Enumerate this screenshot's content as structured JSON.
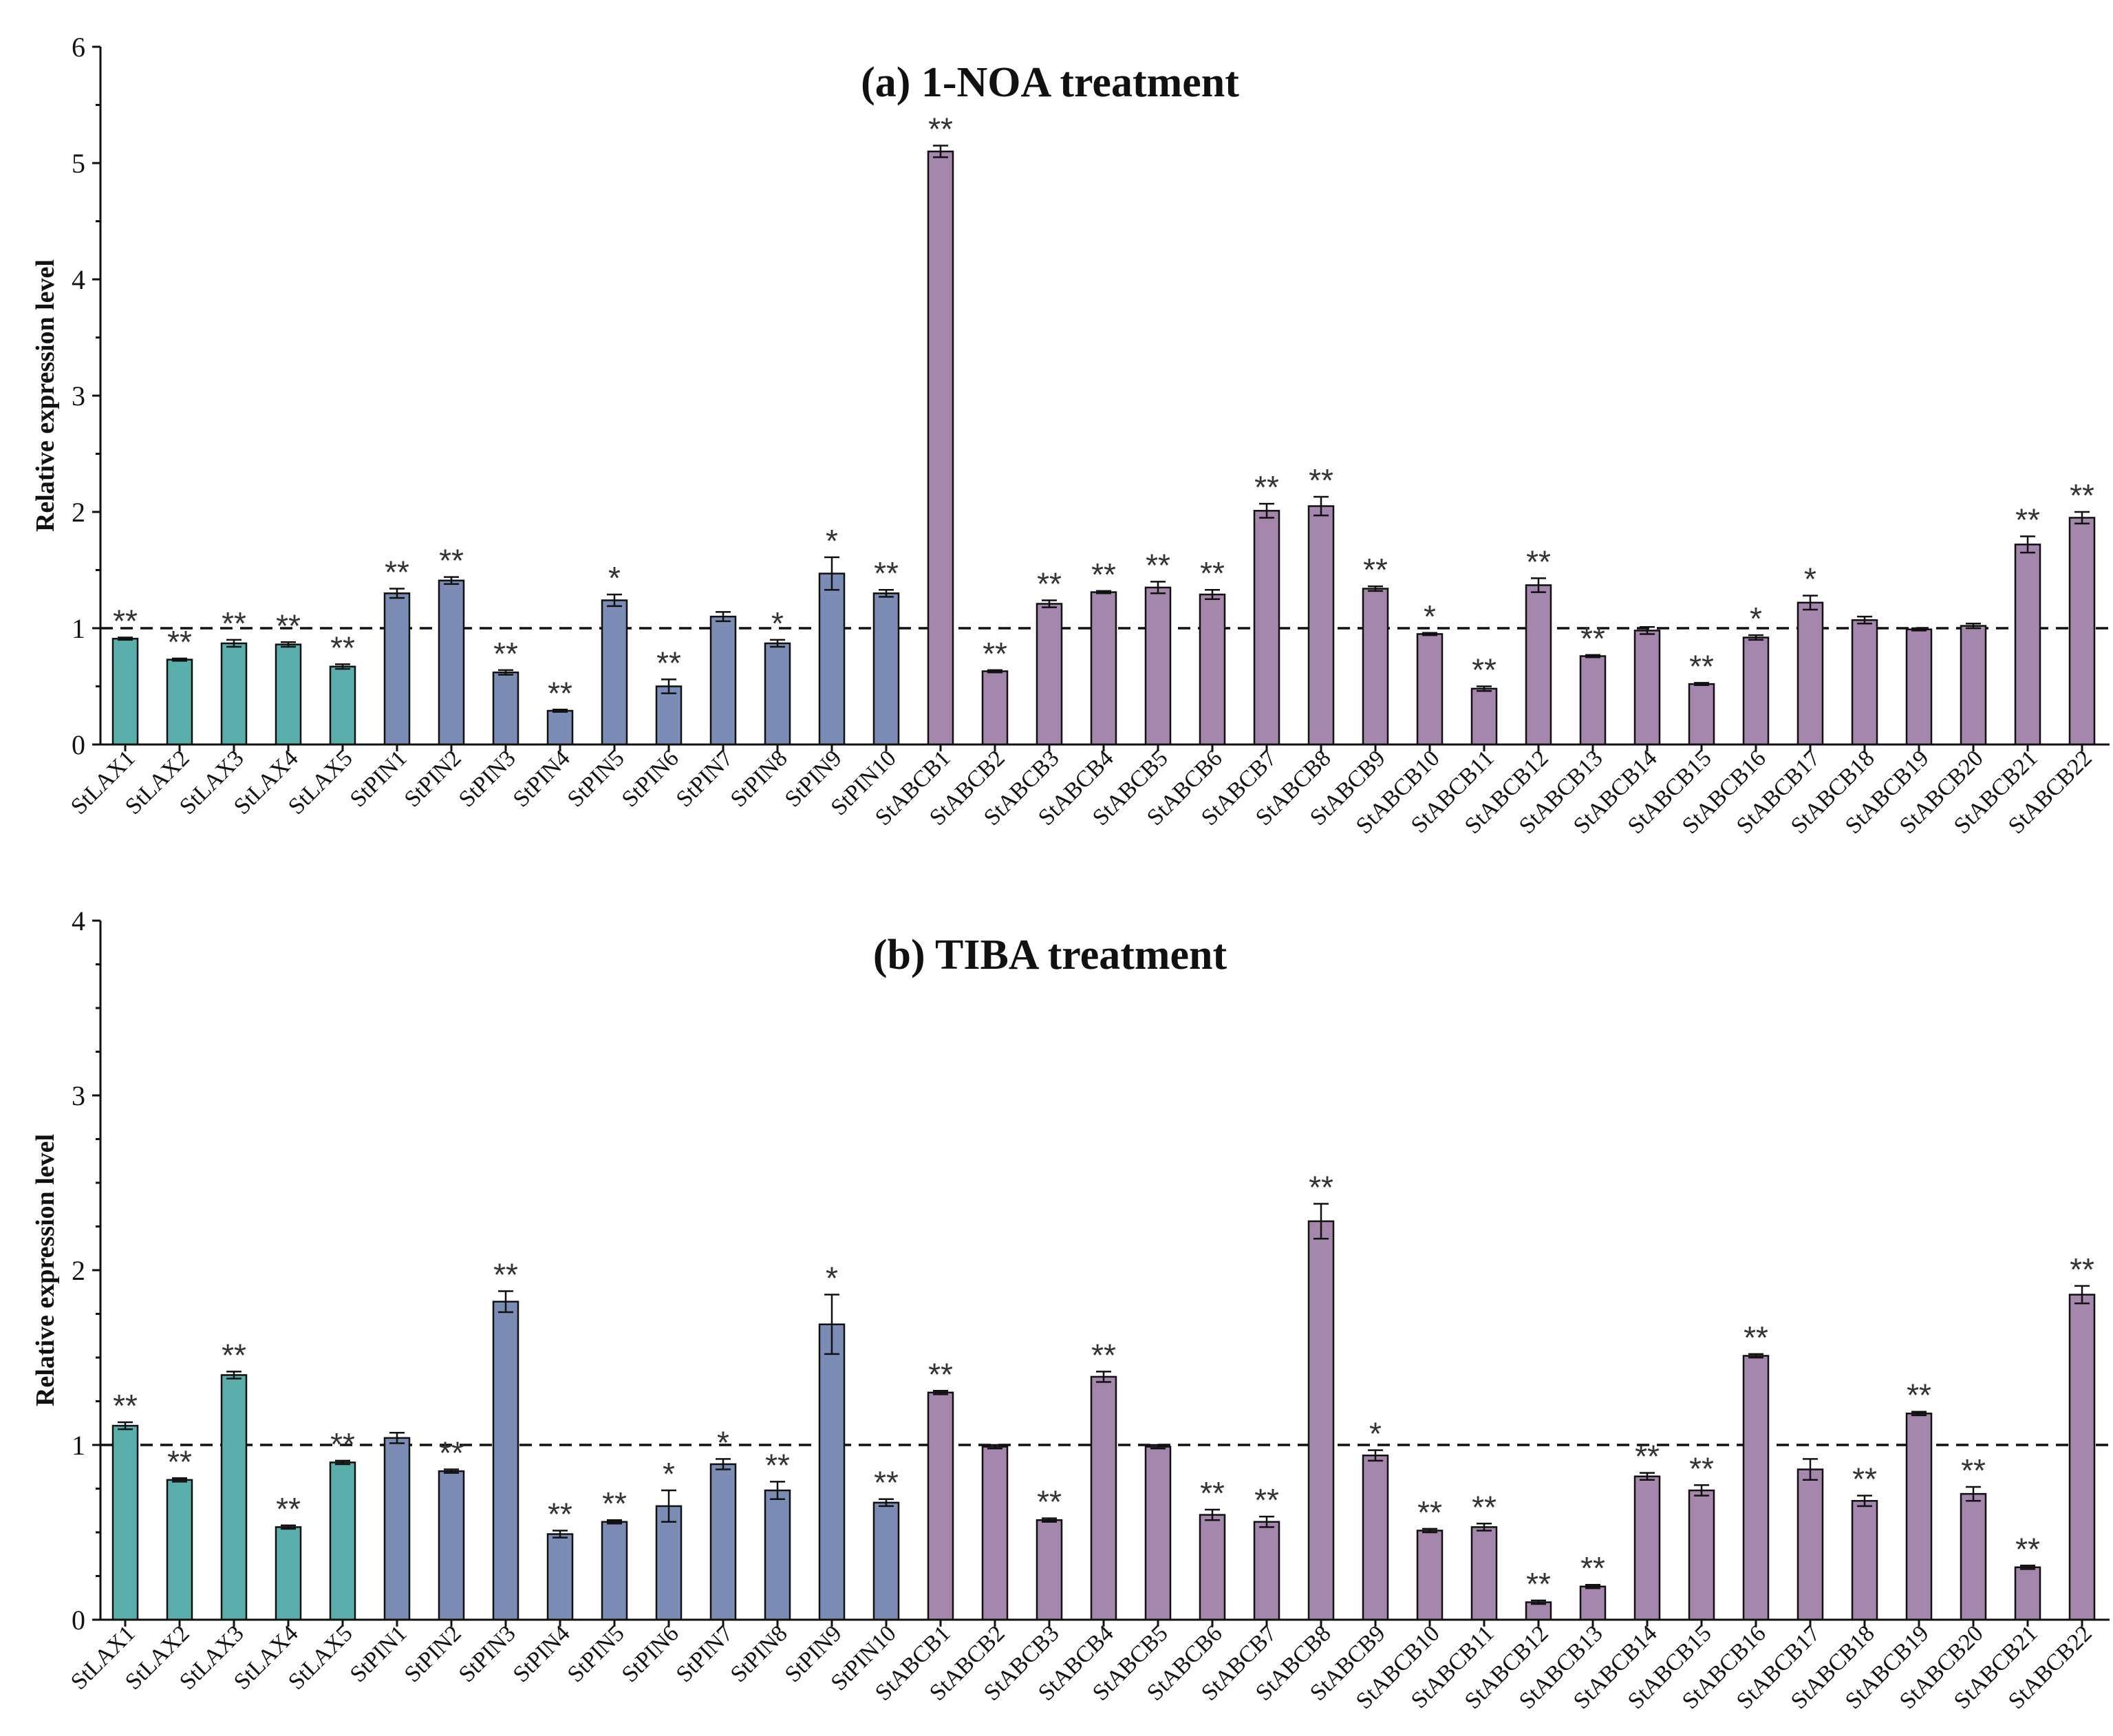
{
  "colors": {
    "lax": "#5aaeab",
    "pin": "#7b8db5",
    "abcb": "#a586ac"
  },
  "chart_data": [
    {
      "type": "bar",
      "title": "(a) 1-NOA treatment",
      "ylabel": "Relative expression level",
      "xlabel": "",
      "ylim": [
        0,
        6
      ],
      "yticks": [
        0,
        1,
        2,
        3,
        4,
        5,
        6
      ],
      "reference_line": 1,
      "categories": [
        "StLAX1",
        "StLAX2",
        "StLAX3",
        "StLAX4",
        "StLAX5",
        "StPIN1",
        "StPIN2",
        "StPIN3",
        "StPIN4",
        "StPIN5",
        "StPIN6",
        "StPIN7",
        "StPIN8",
        "StPIN9",
        "StPIN10",
        "StABCB1",
        "StABCB2",
        "StABCB3",
        "StABCB4",
        "StABCB5",
        "StABCB6",
        "StABCB7",
        "StABCB8",
        "StABCB9",
        "StABCB10",
        "StABCB11",
        "StABCB12",
        "StABCB13",
        "StABCB14",
        "StABCB15",
        "StABCB16",
        "StABCB17",
        "StABCB18",
        "StABCB19",
        "StABCB20",
        "StABCB21",
        "StABCB22"
      ],
      "values": [
        0.91,
        0.73,
        0.87,
        0.86,
        0.67,
        1.3,
        1.41,
        0.62,
        0.29,
        1.24,
        0.5,
        1.1,
        0.87,
        1.47,
        1.3,
        5.1,
        0.63,
        1.21,
        1.31,
        1.35,
        1.29,
        2.01,
        2.05,
        1.34,
        0.95,
        0.48,
        1.37,
        0.76,
        0.98,
        0.52,
        0.92,
        1.22,
        1.07,
        0.99,
        1.02,
        1.72,
        1.95
      ],
      "errors": [
        0.01,
        0.01,
        0.03,
        0.02,
        0.02,
        0.04,
        0.03,
        0.02,
        0.01,
        0.05,
        0.06,
        0.04,
        0.03,
        0.14,
        0.03,
        0.05,
        0.01,
        0.03,
        0.01,
        0.05,
        0.04,
        0.06,
        0.08,
        0.02,
        0.01,
        0.02,
        0.06,
        0.01,
        0.03,
        0.01,
        0.02,
        0.06,
        0.03,
        0.01,
        0.02,
        0.07,
        0.05
      ],
      "significance": [
        "**",
        "**",
        "**",
        "**",
        "**",
        "**",
        "**",
        "**",
        "**",
        "*",
        "**",
        "",
        "*",
        "*",
        "**",
        "**",
        "**",
        "**",
        "**",
        "**",
        "**",
        "**",
        "**",
        "**",
        "*",
        "**",
        "**",
        "**",
        "",
        "**",
        "*",
        "*",
        "",
        "",
        "",
        "**",
        "**"
      ],
      "groups": [
        "lax",
        "lax",
        "lax",
        "lax",
        "lax",
        "pin",
        "pin",
        "pin",
        "pin",
        "pin",
        "pin",
        "pin",
        "pin",
        "pin",
        "pin",
        "abcb",
        "abcb",
        "abcb",
        "abcb",
        "abcb",
        "abcb",
        "abcb",
        "abcb",
        "abcb",
        "abcb",
        "abcb",
        "abcb",
        "abcb",
        "abcb",
        "abcb",
        "abcb",
        "abcb",
        "abcb",
        "abcb",
        "abcb",
        "abcb",
        "abcb"
      ]
    },
    {
      "type": "bar",
      "title": "(b) TIBA treatment",
      "ylabel": "Relative expression level",
      "xlabel": "",
      "ylim": [
        0,
        4
      ],
      "yticks": [
        0,
        1,
        2,
        3,
        4
      ],
      "reference_line": 1,
      "categories": [
        "StLAX1",
        "StLAX2",
        "StLAX3",
        "StLAX4",
        "StLAX5",
        "StPIN1",
        "StPIN2",
        "StPIN3",
        "StPIN4",
        "StPIN5",
        "StPIN6",
        "StPIN7",
        "StPIN8",
        "StPIN9",
        "StPIN10",
        "StABCB1",
        "StABCB2",
        "StABCB3",
        "StABCB4",
        "StABCB5",
        "StABCB6",
        "StABCB7",
        "StABCB8",
        "StABCB9",
        "StABCB10",
        "StABCB11",
        "StABCB12",
        "StABCB13",
        "StABCB14",
        "StABCB15",
        "StABCB16",
        "StABCB17",
        "StABCB18",
        "StABCB19",
        "StABCB20",
        "StABCB21",
        "StABCB22"
      ],
      "values": [
        1.11,
        0.8,
        1.4,
        0.53,
        0.9,
        1.04,
        0.85,
        1.82,
        0.49,
        0.56,
        0.65,
        0.89,
        0.74,
        1.69,
        0.67,
        1.3,
        0.99,
        0.57,
        1.39,
        0.99,
        0.6,
        0.56,
        2.28,
        0.94,
        0.51,
        0.53,
        0.1,
        0.19,
        0.82,
        0.74,
        1.51,
        0.86,
        0.68,
        1.18,
        0.72,
        0.3,
        1.86
      ],
      "errors": [
        0.02,
        0.01,
        0.02,
        0.01,
        0.01,
        0.03,
        0.01,
        0.06,
        0.02,
        0.01,
        0.09,
        0.03,
        0.05,
        0.17,
        0.02,
        0.01,
        0.01,
        0.01,
        0.03,
        0.01,
        0.03,
        0.03,
        0.1,
        0.03,
        0.01,
        0.02,
        0.01,
        0.01,
        0.02,
        0.03,
        0.01,
        0.06,
        0.03,
        0.01,
        0.04,
        0.01,
        0.05
      ],
      "significance": [
        "**",
        "**",
        "**",
        "**",
        "**",
        "",
        "**",
        "**",
        "**",
        "**",
        "*",
        "*",
        "**",
        "*",
        "**",
        "**",
        "",
        "**",
        "**",
        "",
        "**",
        "**",
        "**",
        "*",
        "**",
        "**",
        "**",
        "**",
        "**",
        "**",
        "**",
        "",
        "**",
        "**",
        "**",
        "**",
        "**"
      ],
      "groups": [
        "lax",
        "lax",
        "lax",
        "lax",
        "lax",
        "pin",
        "pin",
        "pin",
        "pin",
        "pin",
        "pin",
        "pin",
        "pin",
        "pin",
        "pin",
        "abcb",
        "abcb",
        "abcb",
        "abcb",
        "abcb",
        "abcb",
        "abcb",
        "abcb",
        "abcb",
        "abcb",
        "abcb",
        "abcb",
        "abcb",
        "abcb",
        "abcb",
        "abcb",
        "abcb",
        "abcb",
        "abcb",
        "abcb",
        "abcb",
        "abcb"
      ]
    }
  ]
}
